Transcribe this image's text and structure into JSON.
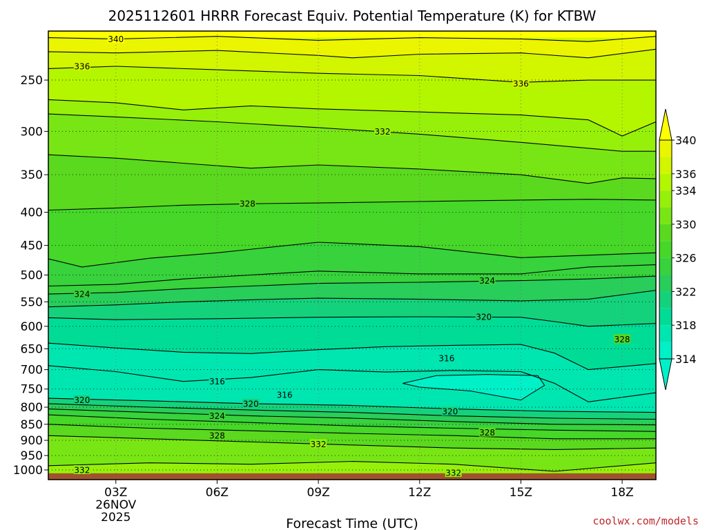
{
  "chart_data": {
    "type": "contour",
    "title": "2025112601 HRRR Forecast Equiv. Potential Temperature (K) for KTBW",
    "xlabel": "Forecast Time (UTC)",
    "ylabel": "",
    "x_unit": "hours",
    "xlim": [
      1,
      19
    ],
    "x_ticks": [
      {
        "hour": 3,
        "label": "03Z",
        "sub": [
          "26NOV",
          "2025"
        ]
      },
      {
        "hour": 6,
        "label": "06Z",
        "sub": []
      },
      {
        "hour": 9,
        "label": "09Z",
        "sub": []
      },
      {
        "hour": 12,
        "label": "12Z",
        "sub": []
      },
      {
        "hour": 15,
        "label": "15Z",
        "sub": []
      },
      {
        "hour": 18,
        "label": "18Z",
        "sub": []
      }
    ],
    "y_scale": "log",
    "ylim": [
      1035,
      210
    ],
    "y_ticks": [
      250,
      300,
      350,
      400,
      450,
      500,
      550,
      600,
      650,
      700,
      750,
      800,
      850,
      900,
      950,
      1000
    ],
    "grid": "dotted",
    "colorbar": {
      "levels": [
        314,
        316,
        318,
        320,
        322,
        324,
        326,
        328,
        330,
        332,
        334,
        336,
        338,
        340
      ],
      "tick_labels": [
        314,
        318,
        322,
        326,
        330,
        334,
        336,
        340
      ],
      "colors": [
        "#00f0c8",
        "#00e6b0",
        "#00dc96",
        "#14d27c",
        "#28cd5a",
        "#37d23c",
        "#46d728",
        "#5ad91e",
        "#78e614",
        "#96f00a",
        "#b4f500",
        "#d2f500",
        "#ebf500",
        "#ffff00"
      ],
      "extend": "both"
    },
    "ground_color": "#a0522d",
    "profiles": [
      {
        "level": 340,
        "points": [
          [
            1,
            215
          ],
          [
            3,
            216
          ],
          [
            6,
            214
          ],
          [
            9,
            217
          ],
          [
            12,
            215
          ],
          [
            15,
            216
          ],
          [
            17,
            218
          ],
          [
            19,
            214
          ]
        ]
      },
      {
        "level": 338,
        "points": [
          [
            1,
            226
          ],
          [
            3,
            227
          ],
          [
            6,
            225
          ],
          [
            9,
            229
          ],
          [
            10,
            231
          ],
          [
            12,
            228
          ],
          [
            15,
            227
          ],
          [
            17,
            231
          ],
          [
            19,
            224
          ]
        ]
      },
      {
        "level": 336,
        "points": [
          [
            1,
            240
          ],
          [
            3,
            238
          ],
          [
            6,
            241
          ],
          [
            9,
            244
          ],
          [
            12,
            246
          ],
          [
            15,
            252
          ],
          [
            17,
            250
          ],
          [
            19,
            250
          ]
        ]
      },
      {
        "level": 334,
        "points": [
          [
            1,
            268
          ],
          [
            3,
            271
          ],
          [
            5,
            278
          ],
          [
            7,
            274
          ],
          [
            9,
            277
          ],
          [
            12,
            280
          ],
          [
            15,
            283
          ],
          [
            17,
            288
          ],
          [
            18,
            305
          ],
          [
            19,
            290
          ]
        ]
      },
      {
        "level": 332,
        "points": [
          [
            1,
            282
          ],
          [
            3,
            285
          ],
          [
            6,
            290
          ],
          [
            9,
            296
          ],
          [
            12,
            303
          ],
          [
            15,
            312
          ],
          [
            18,
            322
          ],
          [
            19,
            322
          ]
        ]
      },
      {
        "level": 330,
        "points": [
          [
            1,
            326
          ],
          [
            3,
            330
          ],
          [
            5,
            336
          ],
          [
            7,
            342
          ],
          [
            9,
            338
          ],
          [
            12,
            343
          ],
          [
            15,
            350
          ],
          [
            17,
            361
          ],
          [
            18,
            354
          ],
          [
            19,
            355
          ]
        ]
      },
      {
        "level": 328,
        "points": [
          [
            1,
            397
          ],
          [
            3,
            394
          ],
          [
            5,
            390
          ],
          [
            7,
            388
          ],
          [
            9,
            387
          ],
          [
            12,
            385
          ],
          [
            15,
            383
          ],
          [
            17,
            382
          ],
          [
            19,
            383
          ]
        ]
      },
      {
        "level": 326,
        "points": [
          [
            1,
            472
          ],
          [
            2,
            486
          ],
          [
            4,
            471
          ],
          [
            6,
            462
          ],
          [
            9,
            445
          ],
          [
            12,
            452
          ],
          [
            15,
            470
          ],
          [
            17,
            466
          ],
          [
            19,
            462
          ]
        ]
      },
      {
        "level": 325,
        "points": [
          [
            1,
            520
          ],
          [
            3,
            517
          ],
          [
            5,
            507
          ],
          [
            7,
            500
          ],
          [
            9,
            493
          ],
          [
            12,
            498
          ],
          [
            15,
            498
          ],
          [
            17,
            486
          ],
          [
            19,
            482
          ]
        ]
      },
      {
        "level": 324,
        "points": [
          [
            1,
            535
          ],
          [
            3,
            532
          ],
          [
            5,
            525
          ],
          [
            7,
            520
          ],
          [
            9,
            515
          ],
          [
            12,
            513
          ],
          [
            15,
            510
          ],
          [
            17,
            507
          ],
          [
            19,
            502
          ]
        ]
      },
      {
        "level": 322,
        "points": [
          [
            1,
            560
          ],
          [
            3,
            556
          ],
          [
            5,
            550
          ],
          [
            7,
            546
          ],
          [
            9,
            543
          ],
          [
            12,
            545
          ],
          [
            15,
            548
          ],
          [
            17,
            545
          ],
          [
            19,
            528
          ]
        ]
      },
      {
        "level": 320,
        "points": [
          [
            1,
            582
          ],
          [
            3,
            586
          ],
          [
            6,
            584
          ],
          [
            9,
            581
          ],
          [
            12,
            580
          ],
          [
            15,
            581
          ],
          [
            16,
            590
          ],
          [
            17,
            600
          ],
          [
            19,
            594
          ]
        ]
      },
      {
        "level": 318,
        "points": [
          [
            1,
            637
          ],
          [
            3,
            648
          ],
          [
            5,
            658
          ],
          [
            7,
            661
          ],
          [
            9,
            652
          ],
          [
            11,
            645
          ],
          [
            13,
            642
          ],
          [
            15,
            640
          ],
          [
            16,
            660
          ],
          [
            17,
            700
          ],
          [
            19,
            685
          ]
        ]
      },
      {
        "level": 316,
        "points": [
          [
            1,
            690
          ],
          [
            3,
            705
          ],
          [
            5,
            730
          ],
          [
            7,
            720
          ],
          [
            9,
            700
          ],
          [
            11,
            706
          ],
          [
            13,
            702
          ],
          [
            15,
            705
          ],
          [
            16,
            735
          ],
          [
            17,
            785
          ],
          [
            19,
            760
          ]
        ]
      }
    ],
    "low_layer_profiles": [
      {
        "level": 320,
        "points": [
          [
            1,
            775
          ],
          [
            4,
            782
          ],
          [
            7,
            790
          ],
          [
            10,
            795
          ],
          [
            13,
            805
          ],
          [
            16,
            812
          ],
          [
            19,
            815
          ]
        ]
      },
      {
        "level": 322,
        "points": [
          [
            1,
            790
          ],
          [
            4,
            800
          ],
          [
            7,
            808
          ],
          [
            10,
            815
          ],
          [
            13,
            825
          ],
          [
            16,
            832
          ],
          [
            19,
            835
          ]
        ]
      },
      {
        "level": 324,
        "points": [
          [
            1,
            805
          ],
          [
            4,
            815
          ],
          [
            7,
            825
          ],
          [
            10,
            832
          ],
          [
            13,
            842
          ],
          [
            16,
            850
          ],
          [
            19,
            852
          ]
        ]
      },
      {
        "level": 326,
        "points": [
          [
            1,
            822
          ],
          [
            4,
            835
          ],
          [
            7,
            845
          ],
          [
            10,
            855
          ],
          [
            13,
            862
          ],
          [
            16,
            868
          ],
          [
            19,
            872
          ]
        ]
      },
      {
        "level": 328,
        "points": [
          [
            1,
            850
          ],
          [
            4,
            862
          ],
          [
            7,
            870
          ],
          [
            10,
            878
          ],
          [
            13,
            885
          ],
          [
            16,
            895
          ],
          [
            19,
            895
          ]
        ]
      },
      {
        "level": 330,
        "points": [
          [
            1,
            885
          ],
          [
            4,
            895
          ],
          [
            7,
            905
          ],
          [
            10,
            915
          ],
          [
            13,
            925
          ],
          [
            16,
            930
          ],
          [
            19,
            925
          ]
        ]
      },
      {
        "level": 332,
        "points": [
          [
            1,
            985
          ],
          [
            4,
            975
          ],
          [
            7,
            980
          ],
          [
            10,
            970
          ],
          [
            13,
            980
          ],
          [
            16,
            1005
          ],
          [
            19,
            975
          ]
        ]
      }
    ],
    "low_cold_pocket": {
      "level": 314,
      "points": [
        [
          11.5,
          735
        ],
        [
          12.5,
          715
        ],
        [
          14,
          712
        ],
        [
          15.5,
          715
        ],
        [
          15.7,
          740
        ],
        [
          15,
          780
        ],
        [
          13.5,
          755
        ],
        [
          12,
          745
        ]
      ]
    },
    "labels": [
      {
        "text": "340",
        "x": 3,
        "p": 216
      },
      {
        "text": "336",
        "x": 2,
        "p": 238
      },
      {
        "text": "336",
        "x": 15,
        "p": 253
      },
      {
        "text": "332",
        "x": 10.9,
        "p": 300
      },
      {
        "text": "328",
        "x": 6.9,
        "p": 388
      },
      {
        "text": "324",
        "x": 14,
        "p": 510
      },
      {
        "text": "324",
        "x": 2,
        "p": 535
      },
      {
        "text": "320",
        "x": 13.9,
        "p": 580
      },
      {
        "text": "328",
        "x": 18,
        "p": 628
      },
      {
        "text": "316",
        "x": 12.8,
        "p": 672
      },
      {
        "text": "316",
        "x": 6,
        "p": 730
      },
      {
        "text": "316",
        "x": 8,
        "p": 765
      },
      {
        "text": "320",
        "x": 2,
        "p": 780
      },
      {
        "text": "320",
        "x": 7,
        "p": 790
      },
      {
        "text": "320",
        "x": 12.9,
        "p": 812
      },
      {
        "text": "324",
        "x": 6,
        "p": 825
      },
      {
        "text": "328",
        "x": 14,
        "p": 875
      },
      {
        "text": "328",
        "x": 6,
        "p": 885
      },
      {
        "text": "332",
        "x": 9,
        "p": 912
      },
      {
        "text": "332",
        "x": 2,
        "p": 1000
      },
      {
        "text": "332",
        "x": 13,
        "p": 1010
      }
    ]
  },
  "credit": "coolwx.com/models"
}
